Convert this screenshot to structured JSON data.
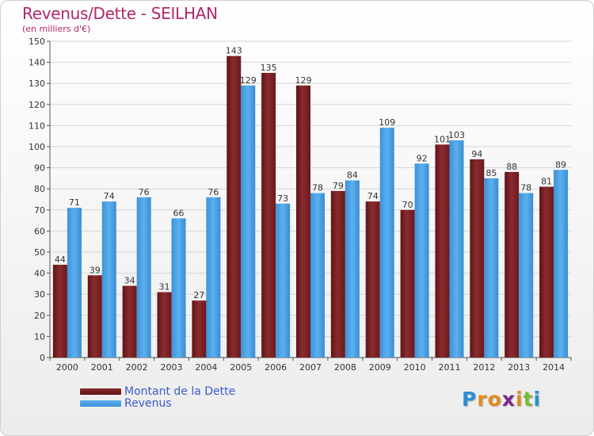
{
  "title": "Revenus/Dette - SEILHAN",
  "subtitle": "(en milliers d'€)",
  "colors": {
    "debt": "#7a1f22",
    "revenue": "#4aa3e6",
    "title": "#b0286a",
    "legend_text": "#3a5ccc"
  },
  "chart_data": {
    "type": "bar",
    "categories": [
      "2000",
      "2001",
      "2002",
      "2003",
      "2004",
      "2005",
      "2006",
      "2007",
      "2008",
      "2009",
      "2010",
      "2011",
      "2012",
      "2013",
      "2014"
    ],
    "series": [
      {
        "name": "Montant de la Dette",
        "values": [
          44,
          39,
          34,
          31,
          27,
          143,
          135,
          129,
          79,
          74,
          70,
          101,
          94,
          88,
          81
        ]
      },
      {
        "name": "Revenus",
        "values": [
          71,
          74,
          76,
          66,
          76,
          129,
          73,
          78,
          84,
          109,
          92,
          103,
          85,
          78,
          89
        ]
      }
    ],
    "ylim": [
      0,
      150
    ],
    "yticks": [
      0,
      10,
      20,
      30,
      40,
      50,
      60,
      70,
      80,
      90,
      100,
      110,
      120,
      130,
      140,
      150
    ],
    "grid": true,
    "legend": "bottom-left"
  },
  "legend": {
    "items": [
      {
        "label": "Montant de la Dette",
        "color": "#7a1f22"
      },
      {
        "label": "Revenus",
        "color": "#4aa3e6"
      }
    ]
  },
  "logo": {
    "letters": [
      "P",
      "r",
      "o",
      "x",
      "i",
      "t",
      "i"
    ],
    "letter_colors": [
      "#2b8fd6",
      "#e08a1e",
      "#e08a1e",
      "#7a2a8a",
      "#e08a1e",
      "#7ab83a",
      "#2b8fd6"
    ]
  }
}
